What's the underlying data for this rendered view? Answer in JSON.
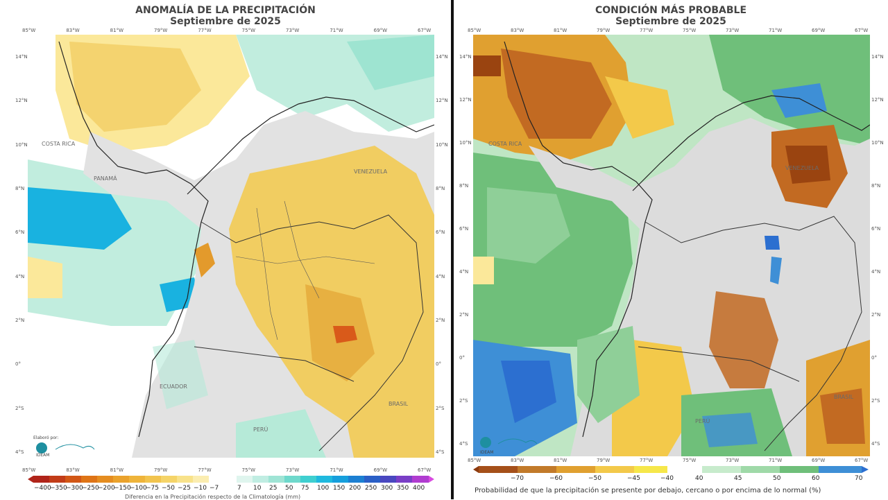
{
  "left_panel": {
    "title_line1": "ANOMALÍA DE LA PRECIPITACIÓN",
    "title_line2": "Septiembre de 2025",
    "lon_ticks": [
      "85°W",
      "83°W",
      "81°W",
      "79°W",
      "77°W",
      "75°W",
      "73°W",
      "71°W",
      "69°W",
      "67°W"
    ],
    "lat_ticks": [
      "14°N",
      "12°N",
      "10°N",
      "8°N",
      "6°N",
      "4°N",
      "2°N",
      "0°",
      "2°S",
      "4°S"
    ],
    "country_labels": [
      "COSTA RICA",
      "PANAMÁ",
      "VENEZUELA",
      "ECUADOR",
      "PERÚ",
      "BRASIL"
    ],
    "colorbar_labels_neg": [
      "−400",
      "−350",
      "−300",
      "−250",
      "−200",
      "−150",
      "−100",
      "−75",
      "−50",
      "−25",
      "−10",
      "−7"
    ],
    "colorbar_labels_pos": [
      "7",
      "10",
      "25",
      "50",
      "75",
      "100",
      "150",
      "200",
      "250",
      "300",
      "350",
      "400"
    ],
    "colorbar_caption": "Diferencia en la Precipitación respecto de la Climatología (mm)"
  },
  "right_panel": {
    "title_line1": "CONDICIÓN MÁS PROBABLE",
    "title_line2": "Septiembre de 2025",
    "lon_ticks": [
      "85°W",
      "83°W",
      "81°W",
      "79°W",
      "77°W",
      "75°W",
      "73°W",
      "71°W",
      "69°W",
      "67°W"
    ],
    "lat_ticks": [
      "14°N",
      "12°N",
      "10°N",
      "8°N",
      "6°N",
      "4°N",
      "2°N",
      "0°",
      "2°S",
      "4°S"
    ],
    "country_labels": [
      "COSTA RICA",
      "VENEZUELA",
      "PERÚ",
      "BRASIL"
    ],
    "colorbar_labels": [
      "−70",
      "−60",
      "−50",
      "−45",
      "−40",
      "40",
      "45",
      "50",
      "60",
      "70"
    ],
    "colorbar_caption": "Probabilidad de que la precipitación se presente por debajo, cercano o por encima de lo normal (%)"
  },
  "logo": {
    "label": "Elaboró por:",
    "org": "IDEAM"
  },
  "colors": {
    "brown_dark": "#8c3a0e",
    "orange": "#e0a030",
    "yellow": "#f3c94a",
    "light_yellow": "#fbe89a",
    "teal_light": "#b6ead8",
    "teal": "#4fd0c0",
    "cyan": "#10b0e0",
    "green_light": "#bfe6c4",
    "green": "#6fbf7a",
    "blue": "#3e8fd6",
    "land_gray": "#d9d9d9"
  }
}
